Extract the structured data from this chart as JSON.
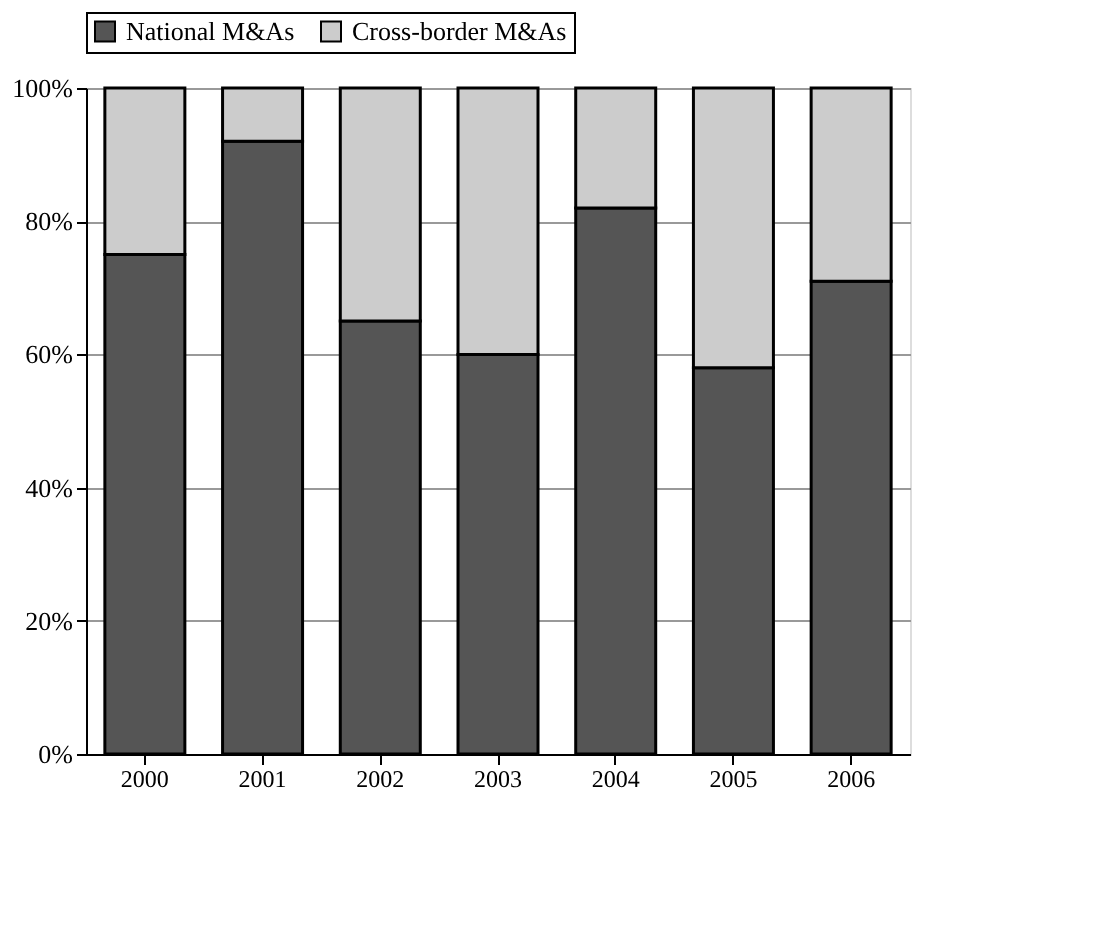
{
  "chart_data": {
    "type": "bar",
    "stacked": true,
    "categories": [
      "2000",
      "2001",
      "2002",
      "2003",
      "2004",
      "2005",
      "2006"
    ],
    "series": [
      {
        "name": "National M&As",
        "color": "#555555",
        "values": [
          75,
          92,
          65,
          60,
          82,
          58,
          71
        ]
      },
      {
        "name": "Cross-border M&As",
        "color": "#cccccc",
        "values": [
          25,
          8,
          35,
          40,
          18,
          42,
          29
        ]
      }
    ],
    "ylim": [
      0,
      100
    ],
    "yticks": [
      {
        "value": 0,
        "label": "0%"
      },
      {
        "value": 20,
        "label": "20%"
      },
      {
        "value": 40,
        "label": "40%"
      },
      {
        "value": 60,
        "label": "60%"
      },
      {
        "value": 80,
        "label": "80%"
      },
      {
        "value": 100,
        "label": "100%"
      }
    ],
    "grid": "y",
    "legend": "top"
  }
}
